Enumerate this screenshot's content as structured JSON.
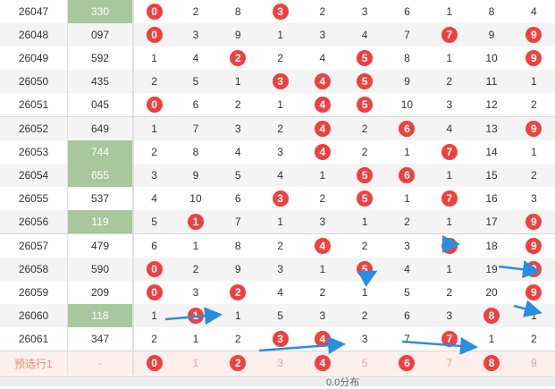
{
  "colors": {
    "ball": "#ef4040",
    "highlight": "#a8c79d",
    "arrow": "#2a8ee0",
    "pred_bg": "#fdf0ec"
  },
  "rows": [
    {
      "issue": "26047",
      "num": "330",
      "hl": true,
      "d": [
        "0",
        "2",
        "8",
        "3",
        "2",
        "3",
        "6",
        "1",
        "8",
        "4"
      ],
      "balls": [
        0,
        3
      ]
    },
    {
      "issue": "26048",
      "num": "097",
      "hl": false,
      "d": [
        "0",
        "3",
        "9",
        "1",
        "3",
        "4",
        "7",
        "7",
        "9",
        "9"
      ],
      "balls": [
        0,
        7,
        9
      ]
    },
    {
      "issue": "26049",
      "num": "592",
      "hl": false,
      "d": [
        "1",
        "4",
        "2",
        "2",
        "4",
        "5",
        "8",
        "1",
        "10",
        "9"
      ],
      "balls": [
        2,
        5,
        9
      ]
    },
    {
      "issue": "26050",
      "num": "435",
      "hl": false,
      "d": [
        "2",
        "5",
        "1",
        "3",
        "4",
        "5",
        "9",
        "2",
        "11",
        "1"
      ],
      "balls": [
        3,
        4,
        5
      ]
    },
    {
      "issue": "26051",
      "num": "045",
      "hl": false,
      "d": [
        "0",
        "6",
        "2",
        "1",
        "4",
        "5",
        "10",
        "3",
        "12",
        "2"
      ],
      "balls": [
        0,
        4,
        5
      ]
    },
    {
      "issue": "26052",
      "num": "649",
      "hl": false,
      "d": [
        "1",
        "7",
        "3",
        "2",
        "4",
        "2",
        "6",
        "4",
        "13",
        "9"
      ],
      "balls": [
        4,
        6,
        9
      ]
    },
    {
      "issue": "26053",
      "num": "744",
      "hl": true,
      "d": [
        "2",
        "8",
        "4",
        "3",
        "4",
        "2",
        "1",
        "7",
        "14",
        "1"
      ],
      "balls": [
        4,
        7
      ]
    },
    {
      "issue": "26054",
      "num": "655",
      "hl": true,
      "d": [
        "3",
        "9",
        "5",
        "4",
        "1",
        "5",
        "6",
        "1",
        "15",
        "2"
      ],
      "balls": [
        5,
        6
      ]
    },
    {
      "issue": "26055",
      "num": "537",
      "hl": false,
      "d": [
        "4",
        "10",
        "6",
        "3",
        "2",
        "5",
        "1",
        "7",
        "16",
        "3"
      ],
      "balls": [
        3,
        5,
        7
      ]
    },
    {
      "issue": "26056",
      "num": "119",
      "hl": true,
      "d": [
        "5",
        "1",
        "7",
        "1",
        "3",
        "1",
        "2",
        "1",
        "17",
        "9"
      ],
      "balls": [
        1,
        9
      ]
    },
    {
      "issue": "26057",
      "num": "479",
      "hl": false,
      "d": [
        "6",
        "1",
        "8",
        "2",
        "4",
        "2",
        "3",
        "7",
        "18",
        "9"
      ],
      "balls": [
        4,
        7,
        9
      ]
    },
    {
      "issue": "26058",
      "num": "590",
      "hl": false,
      "d": [
        "0",
        "2",
        "9",
        "3",
        "1",
        "5",
        "4",
        "1",
        "19",
        "9"
      ],
      "balls": [
        0,
        5,
        9
      ]
    },
    {
      "issue": "26059",
      "num": "209",
      "hl": false,
      "d": [
        "0",
        "3",
        "2",
        "4",
        "2",
        "1",
        "5",
        "2",
        "20",
        "9"
      ],
      "balls": [
        0,
        2,
        9
      ]
    },
    {
      "issue": "26060",
      "num": "118",
      "hl": true,
      "d": [
        "1",
        "1",
        "1",
        "5",
        "3",
        "2",
        "6",
        "3",
        "8",
        "1"
      ],
      "balls": [
        1,
        8
      ]
    },
    {
      "issue": "26061",
      "num": "347",
      "hl": false,
      "d": [
        "2",
        "1",
        "2",
        "3",
        "4",
        "3",
        "7",
        "7",
        "1",
        "2"
      ],
      "balls": [
        3,
        4,
        7
      ]
    }
  ],
  "predict": {
    "label": "预选行1",
    "num": "-",
    "d": [
      "0",
      "1",
      "2",
      "3",
      "4",
      "5",
      "6",
      "7",
      "8",
      "9"
    ],
    "balls": [
      0,
      2,
      4,
      6,
      8
    ]
  },
  "footer": {
    "text": "0.0分布"
  }
}
